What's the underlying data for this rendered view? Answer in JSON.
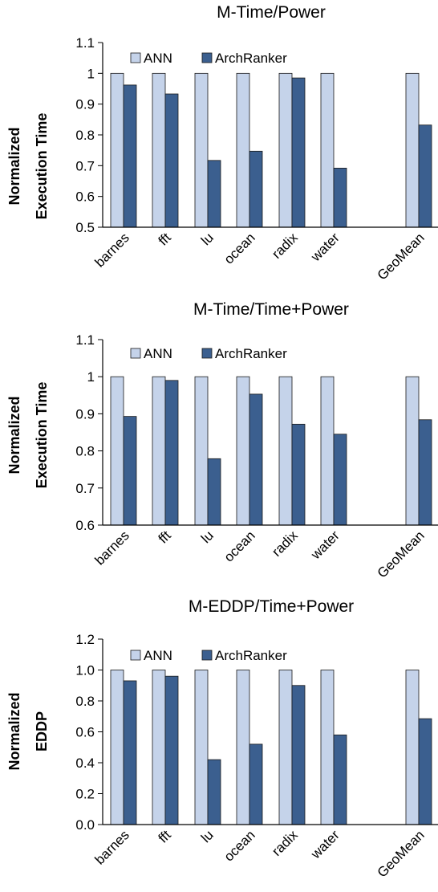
{
  "colors": {
    "ann": "#c5d3ea",
    "archranker": "#3b5f8f",
    "edge": "#1a1a1a"
  },
  "chart_data": [
    {
      "type": "bar",
      "title": "M-Time/Power",
      "ylabel": [
        "Normalized",
        "Execution Time"
      ],
      "categories": [
        "barnes",
        "fft",
        "lu",
        "ocean",
        "radix",
        "water",
        "GeoMean"
      ],
      "ylim": [
        0.5,
        1.1
      ],
      "yticks": [
        "0.5",
        "0.6",
        "0.7",
        "0.8",
        "0.9",
        "1",
        "1.1"
      ],
      "legend": {
        "placement": "top-left",
        "entries": [
          "ANN",
          "ArchRanker"
        ]
      },
      "grid": false,
      "series": [
        {
          "name": "ANN",
          "values": [
            1.0,
            1.0,
            1.0,
            1.0,
            1.0,
            1.0,
            1.0
          ]
        },
        {
          "name": "ArchRanker",
          "values": [
            0.962,
            0.933,
            0.717,
            0.747,
            0.985,
            0.692,
            0.832
          ]
        }
      ]
    },
    {
      "type": "bar",
      "title": "M-Time/Time+Power",
      "ylabel": [
        "Normalized",
        "Execution Time"
      ],
      "categories": [
        "barnes",
        "fft",
        "lu",
        "ocean",
        "radix",
        "water",
        "GeoMean"
      ],
      "ylim": [
        0.6,
        1.1
      ],
      "yticks": [
        "0.6",
        "0.7",
        "0.8",
        "0.9",
        "1",
        "1.1"
      ],
      "legend": {
        "placement": "top-left",
        "entries": [
          "ANN",
          "ArchRanker"
        ]
      },
      "grid": false,
      "series": [
        {
          "name": "ANN",
          "values": [
            1.0,
            1.0,
            1.0,
            1.0,
            1.0,
            1.0,
            1.0
          ]
        },
        {
          "name": "ArchRanker",
          "values": [
            0.893,
            0.99,
            0.779,
            0.953,
            0.872,
            0.845,
            0.884
          ]
        }
      ]
    },
    {
      "type": "bar",
      "title": "M-EDDP/Time+Power",
      "ylabel": [
        "Normalized",
        "EDDP"
      ],
      "categories": [
        "barnes",
        "fft",
        "lu",
        "ocean",
        "radix",
        "water",
        "GeoMean"
      ],
      "ylim": [
        0.0,
        1.2
      ],
      "yticks": [
        "0.0",
        "0.2",
        "0.4",
        "0.6",
        "0.8",
        "1.0",
        "1.2"
      ],
      "legend": {
        "placement": "top-left",
        "entries": [
          "ANN",
          "ArchRanker"
        ]
      },
      "grid": false,
      "series": [
        {
          "name": "ANN",
          "values": [
            1.0,
            1.0,
            1.0,
            1.0,
            1.0,
            1.0,
            1.0
          ]
        },
        {
          "name": "ArchRanker",
          "values": [
            0.93,
            0.96,
            0.42,
            0.52,
            0.9,
            0.58,
            0.685
          ]
        }
      ]
    }
  ]
}
